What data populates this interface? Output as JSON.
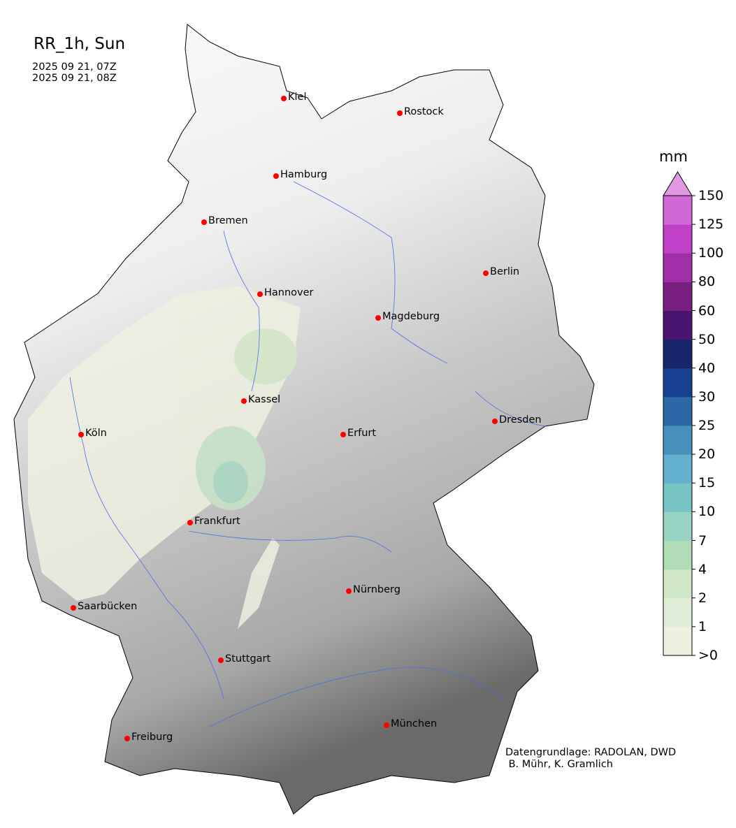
{
  "title": "RR_1h, Sun",
  "time_start": "2025 09 21, 07Z",
  "time_end": "2025 09 21, 08Z",
  "colorbar": {
    "unit": "mm",
    "labels": [
      ">0",
      "1",
      "2",
      "4",
      "7",
      "10",
      "15",
      "20",
      "25",
      "30",
      "40",
      "50",
      "60",
      "80",
      "100",
      "125",
      "150"
    ],
    "colors": [
      "#f0f0e0",
      "#e0eed8",
      "#d0e8c8",
      "#b0dcb8",
      "#98d4c4",
      "#78c4c4",
      "#64b0d0",
      "#4890bc",
      "#2c68a8",
      "#184090",
      "#182468",
      "#481470",
      "#782080",
      "#a030a8",
      "#c040c8",
      "#d068d8"
    ],
    "extend_color": "#e098e0"
  },
  "cities": [
    {
      "name": "Kiel"
    },
    {
      "name": "Rostock"
    },
    {
      "name": "Hamburg"
    },
    {
      "name": "Bremen"
    },
    {
      "name": "Berlin"
    },
    {
      "name": "Hannover"
    },
    {
      "name": "Magdeburg"
    },
    {
      "name": "Kassel"
    },
    {
      "name": "Dresden"
    },
    {
      "name": "Köln"
    },
    {
      "name": "Erfurt"
    },
    {
      "name": "Frankfurt"
    },
    {
      "name": "Nürnberg"
    },
    {
      "name": "Saarbücken"
    },
    {
      "name": "Stuttgart"
    },
    {
      "name": "München"
    },
    {
      "name": "Freiburg"
    }
  ],
  "credit": "Datengrundlage: RADOLAN, DWD\n B. Mühr, K. Gramlich"
}
